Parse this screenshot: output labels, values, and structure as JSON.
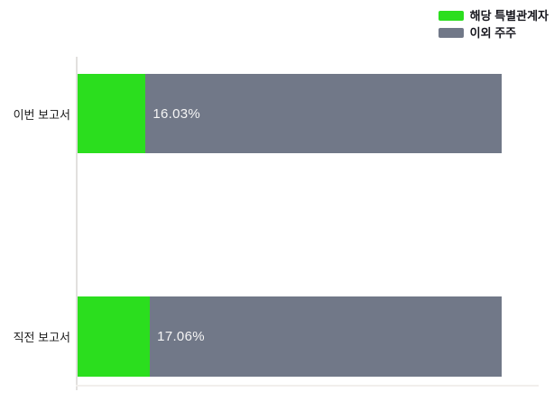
{
  "colors": {
    "series_green": "#2bde1e",
    "series_gray": "#717888",
    "axis_line": "#e2e0de",
    "category_text": "#1a1a1a",
    "legend_text": "#16161d",
    "value_text": "#f5f5f5",
    "background": "#ffffff"
  },
  "chart_data": {
    "type": "bar",
    "orientation": "horizontal",
    "stacked": true,
    "title": "",
    "xlabel": "",
    "ylabel": "",
    "xlim": [
      0,
      100
    ],
    "grid": false,
    "legend_position": "top-right",
    "categories": [
      "이번 보고서",
      "직전 보고서"
    ],
    "series": [
      {
        "name": "해당 특별관계자",
        "color": "#2bde1e",
        "values": [
          16.03,
          17.06
        ]
      },
      {
        "name": "이외 주주",
        "color": "#717888",
        "values": [
          83.97,
          82.94
        ]
      }
    ],
    "value_labels": [
      "16.03%",
      "17.06%"
    ]
  }
}
